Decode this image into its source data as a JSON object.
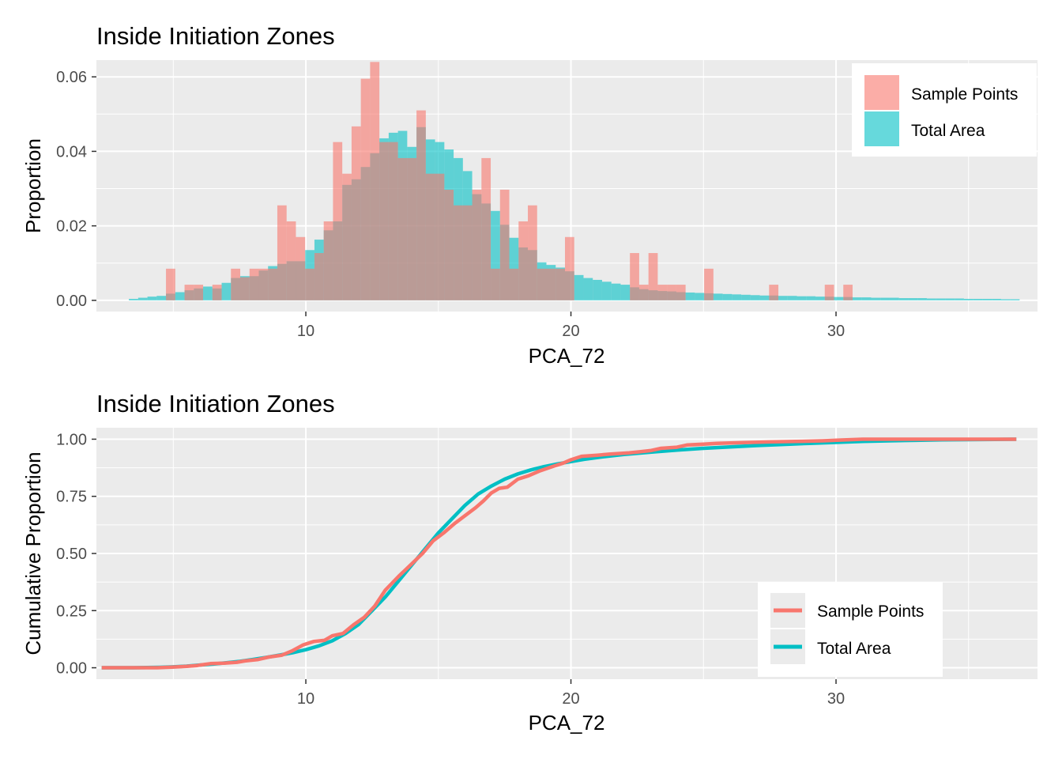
{
  "chart_data": [
    {
      "type": "bar",
      "title": "Inside Initiation Zones",
      "xlabel": "PCA_72",
      "ylabel": "Proportion",
      "xlim": [
        2.1,
        37.6
      ],
      "ylim": [
        -0.003,
        0.0645
      ],
      "x_ticks": [
        10,
        20,
        30
      ],
      "y_ticks": [
        0,
        0.02,
        0.04,
        0.06
      ],
      "x_tick_labels": [
        "10",
        "20",
        "30"
      ],
      "y_tick_labels": [
        "0.00",
        "0.02",
        "0.04",
        "0.06"
      ],
      "grid": true,
      "legend_position": "top-right",
      "bin_width": 0.35,
      "series": [
        {
          "name": "Sample Points",
          "color": "#F8766D",
          "x": [
            4.9,
            5.6,
            5.95,
            6.65,
            7.35,
            7.7,
            8.05,
            8.4,
            8.75,
            9.1,
            9.45,
            9.8,
            10.15,
            10.5,
            10.85,
            11.2,
            11.55,
            11.9,
            12.25,
            12.6,
            12.95,
            13.3,
            13.65,
            14.0,
            14.35,
            14.7,
            15.05,
            15.4,
            15.75,
            16.1,
            16.45,
            16.8,
            17.15,
            17.5,
            17.85,
            18.2,
            18.55,
            18.9,
            19.25,
            19.6,
            19.95,
            22.4,
            22.75,
            23.1,
            23.45,
            23.8,
            24.15,
            25.2,
            27.65,
            29.75,
            30.45
          ],
          "values": [
            0.0085,
            0.0042,
            0.0042,
            0.0042,
            0.0085,
            0.0062,
            0.0085,
            0.0085,
            0.0085,
            0.0255,
            0.0212,
            0.017,
            0.0085,
            0.0127,
            0.0212,
            0.0425,
            0.034,
            0.0467,
            0.0595,
            0.064,
            0.0425,
            0.0425,
            0.0382,
            0.0382,
            0.051,
            0.034,
            0.034,
            0.0297,
            0.0255,
            0.0255,
            0.0297,
            0.0382,
            0.0085,
            0.0297,
            0.0085,
            0.0212,
            0.0255,
            0.0085,
            0.0085,
            0.0085,
            0.017,
            0.0127,
            0.0042,
            0.0127,
            0.0042,
            0.0042,
            0.0042,
            0.0085,
            0.0042,
            0.0042,
            0.0042
          ]
        },
        {
          "name": "Total Area",
          "color": "#00BFC4",
          "x": [
            3.5,
            3.85,
            4.2,
            4.55,
            4.9,
            5.25,
            5.6,
            5.95,
            6.3,
            6.65,
            7.0,
            7.35,
            7.7,
            8.05,
            8.4,
            8.75,
            9.1,
            9.45,
            9.8,
            10.15,
            10.5,
            10.85,
            11.2,
            11.55,
            11.9,
            12.25,
            12.6,
            12.95,
            13.3,
            13.65,
            14.0,
            14.35,
            14.7,
            15.05,
            15.4,
            15.75,
            16.1,
            16.45,
            16.8,
            17.15,
            17.5,
            17.85,
            18.2,
            18.55,
            18.9,
            19.25,
            19.6,
            19.95,
            20.3,
            20.65,
            21.0,
            21.35,
            21.7,
            22.05,
            22.4,
            22.75,
            23.1,
            23.45,
            23.8,
            24.15,
            24.5,
            24.85,
            25.2,
            25.55,
            25.9,
            26.25,
            26.6,
            26.95,
            27.3,
            27.65,
            28.0,
            28.35,
            28.7,
            29.05,
            29.4,
            29.75,
            30.1,
            30.45,
            30.8,
            31.15,
            31.5,
            31.85,
            32.2,
            32.55,
            32.9,
            33.25,
            33.6,
            33.95,
            34.3,
            34.65,
            35.0,
            35.35,
            35.7,
            36.05,
            36.4,
            36.75
          ],
          "values": [
            0.0004,
            0.0007,
            0.001,
            0.0012,
            0.0018,
            0.0022,
            0.0027,
            0.0032,
            0.0037,
            0.0032,
            0.0047,
            0.006,
            0.0065,
            0.0065,
            0.008,
            0.0092,
            0.0098,
            0.0105,
            0.0105,
            0.0135,
            0.0163,
            0.0188,
            0.0212,
            0.031,
            0.0325,
            0.0358,
            0.0395,
            0.0435,
            0.045,
            0.0455,
            0.0412,
            0.0465,
            0.0432,
            0.0425,
            0.0405,
            0.0382,
            0.0347,
            0.0285,
            0.026,
            0.024,
            0.0203,
            0.0168,
            0.0142,
            0.0135,
            0.0102,
            0.0095,
            0.0088,
            0.0078,
            0.0068,
            0.006,
            0.0055,
            0.005,
            0.0045,
            0.0042,
            0.0035,
            0.003,
            0.0027,
            0.0025,
            0.0024,
            0.0022,
            0.0021,
            0.002,
            0.0019,
            0.0018,
            0.0017,
            0.0016,
            0.0015,
            0.0014,
            0.0013,
            0.0013,
            0.0012,
            0.0012,
            0.0011,
            0.0011,
            0.001,
            0.001,
            0.0009,
            0.0009,
            0.0008,
            0.0008,
            0.0007,
            0.0007,
            0.0007,
            0.0006,
            0.0006,
            0.0006,
            0.0005,
            0.0005,
            0.0005,
            0.0005,
            0.0004,
            0.0004,
            0.0004,
            0.0004,
            0.0003,
            0.0003
          ]
        }
      ]
    },
    {
      "type": "line",
      "title": "Inside Initiation Zones",
      "xlabel": "PCA_72",
      "ylabel": "Cumulative Proportion",
      "xlim": [
        2.1,
        37.6
      ],
      "ylim": [
        -0.05,
        1.05
      ],
      "x_ticks": [
        10,
        20,
        30
      ],
      "y_ticks": [
        0,
        0.25,
        0.5,
        0.75,
        1
      ],
      "x_tick_labels": [
        "10",
        "20",
        "30"
      ],
      "y_tick_labels": [
        "0.00",
        "0.25",
        "0.50",
        "0.75",
        "1.00"
      ],
      "grid": true,
      "legend_position": "bottom-right",
      "series": [
        {
          "name": "Sample Points",
          "color": "#F8766D",
          "x": [
            2.3,
            4.4,
            4.95,
            5.5,
            5.9,
            6.4,
            6.9,
            7.4,
            7.7,
            8.2,
            8.6,
            9.1,
            9.5,
            9.9,
            10.3,
            10.7,
            11.0,
            11.4,
            11.8,
            12.2,
            12.6,
            13.0,
            13.5,
            14.0,
            14.4,
            14.8,
            15.2,
            15.6,
            16.0,
            16.4,
            16.7,
            17.0,
            17.3,
            17.6,
            18.0,
            18.4,
            18.8,
            19.3,
            19.7,
            20.0,
            20.4,
            21.0,
            21.5,
            22.2,
            22.6,
            23.0,
            23.4,
            24.0,
            24.4,
            25.0,
            25.5,
            26.5,
            27.5,
            28.5,
            29.5,
            30.4,
            31.0,
            33.0,
            35.0,
            36.8
          ],
          "values": [
            0,
            0,
            0.003,
            0.006,
            0.01,
            0.018,
            0.02,
            0.024,
            0.03,
            0.036,
            0.047,
            0.055,
            0.075,
            0.1,
            0.115,
            0.12,
            0.14,
            0.15,
            0.188,
            0.22,
            0.27,
            0.34,
            0.4,
            0.455,
            0.5,
            0.555,
            0.59,
            0.63,
            0.665,
            0.7,
            0.73,
            0.765,
            0.785,
            0.79,
            0.825,
            0.84,
            0.86,
            0.88,
            0.895,
            0.91,
            0.925,
            0.93,
            0.935,
            0.94,
            0.945,
            0.95,
            0.96,
            0.965,
            0.975,
            0.978,
            0.982,
            0.985,
            0.988,
            0.99,
            0.993,
            0.997,
            1.0,
            1.0,
            1.0,
            1.0
          ]
        },
        {
          "name": "Total Area",
          "color": "#00BFC4",
          "x": [
            2.3,
            3.5,
            4.0,
            4.5,
            5.0,
            5.5,
            6.0,
            6.5,
            7.0,
            7.5,
            8.0,
            8.5,
            9.0,
            9.5,
            10.0,
            10.5,
            11.0,
            11.5,
            12.0,
            12.5,
            13.0,
            13.5,
            14.0,
            14.5,
            15.0,
            15.5,
            16.0,
            16.5,
            17.0,
            17.5,
            18.0,
            18.5,
            19.0,
            19.5,
            20.0,
            20.5,
            21.0,
            21.5,
            22.0,
            23.0,
            24.0,
            25.0,
            26.0,
            27.0,
            28.0,
            29.0,
            30.0,
            31.0,
            32.0,
            33.0,
            34.0,
            35.0,
            36.0,
            36.8
          ],
          "values": [
            0,
            0,
            0.001,
            0.002,
            0.004,
            0.007,
            0.012,
            0.016,
            0.022,
            0.028,
            0.036,
            0.045,
            0.055,
            0.066,
            0.079,
            0.096,
            0.118,
            0.15,
            0.19,
            0.25,
            0.31,
            0.38,
            0.45,
            0.52,
            0.59,
            0.65,
            0.71,
            0.76,
            0.795,
            0.825,
            0.848,
            0.866,
            0.88,
            0.892,
            0.902,
            0.912,
            0.92,
            0.927,
            0.933,
            0.943,
            0.952,
            0.96,
            0.966,
            0.972,
            0.977,
            0.982,
            0.986,
            0.99,
            0.993,
            0.995,
            0.997,
            0.998,
            0.999,
            1.0
          ]
        }
      ]
    }
  ]
}
